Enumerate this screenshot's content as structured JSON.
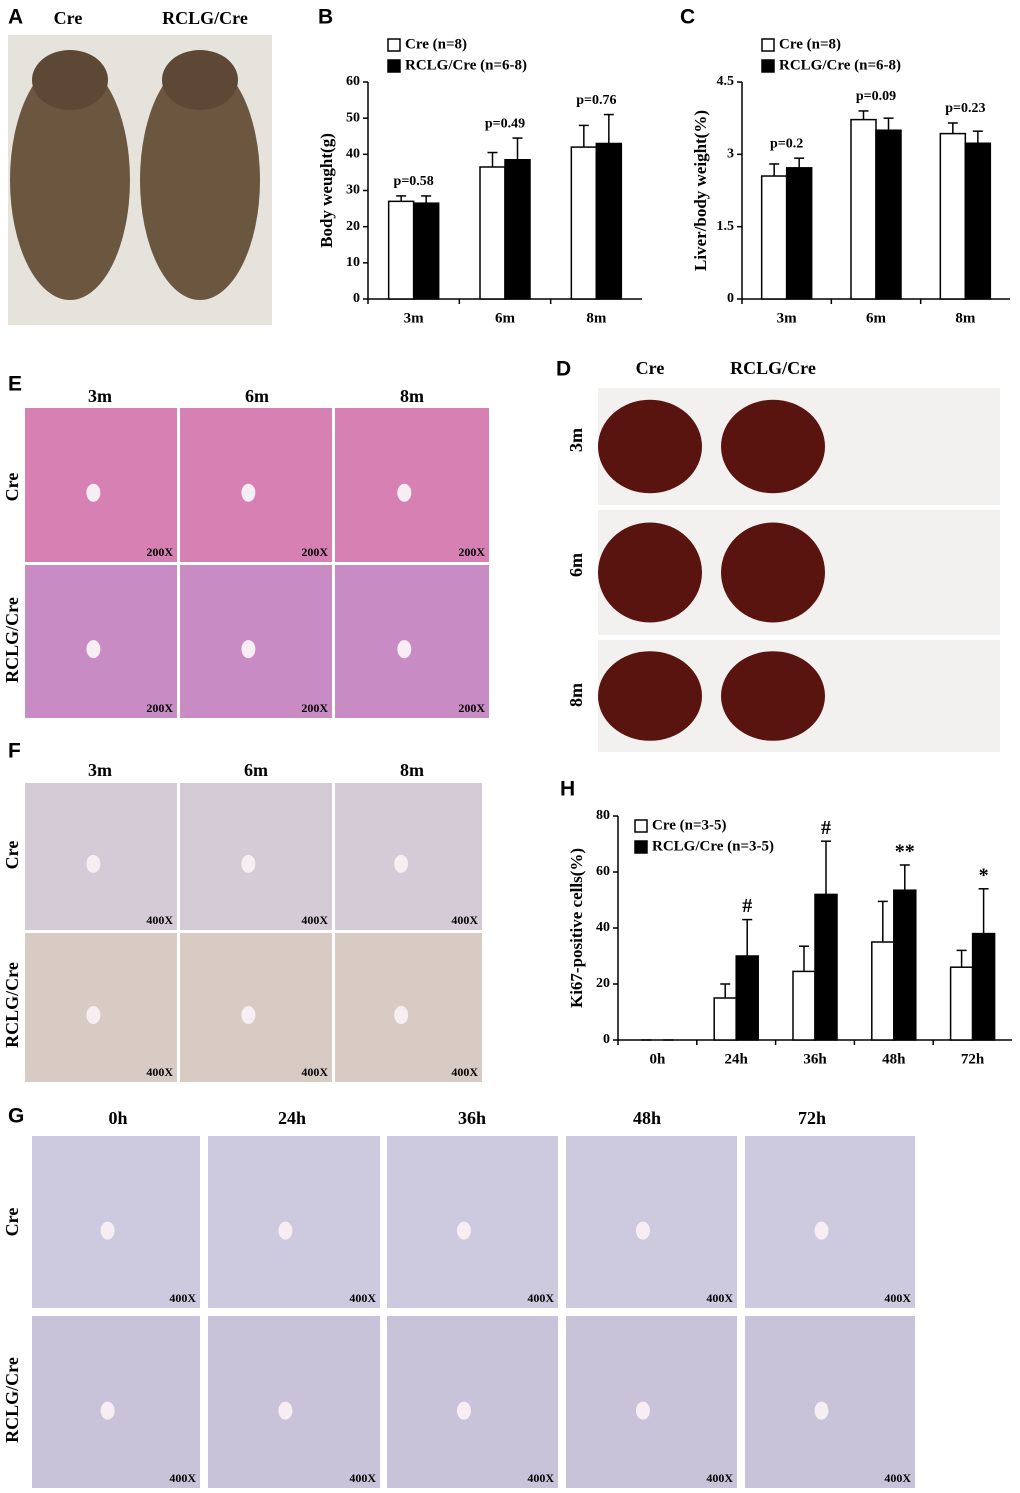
{
  "chart_data": [
    {
      "type": "bar",
      "panel_label": "B",
      "ylabel": "Body weught(g)",
      "categories": [
        "3m",
        "6m",
        "8m"
      ],
      "series": [
        {
          "name": "Cre (n=8)",
          "color": "#ffffff",
          "values": [
            27,
            36.5,
            42
          ],
          "errors": [
            1.5,
            4,
            6
          ]
        },
        {
          "name": "RCLG/Cre (n=6-8)",
          "color": "#000000",
          "values": [
            26.5,
            38.5,
            43
          ],
          "errors": [
            2,
            6,
            8
          ]
        }
      ],
      "annotations": [
        "p=0.58",
        "p=0.49",
        "p=0.76"
      ],
      "ylim": [
        0,
        60
      ],
      "yticks": [
        0,
        10,
        20,
        30,
        40,
        50,
        60
      ]
    },
    {
      "type": "bar",
      "panel_label": "C",
      "ylabel": "Liver/body weight(%)",
      "categories": [
        "3m",
        "6m",
        "8m"
      ],
      "series": [
        {
          "name": "Cre (n=8)",
          "color": "#ffffff",
          "values": [
            2.55,
            3.72,
            3.43
          ],
          "errors": [
            0.25,
            0.18,
            0.22
          ]
        },
        {
          "name": "RCLG/Cre (n=6-8)",
          "color": "#000000",
          "values": [
            2.72,
            3.5,
            3.23
          ],
          "errors": [
            0.2,
            0.25,
            0.25
          ]
        }
      ],
      "annotations": [
        "p=0.2",
        "p=0.09",
        "p=0.23"
      ],
      "ylim": [
        0,
        4.5
      ],
      "yticks": [
        0,
        1.5,
        3,
        4.5
      ]
    },
    {
      "type": "bar",
      "panel_label": "H",
      "ylabel": "Ki67-positive cells(%)",
      "categories": [
        "0h",
        "24h",
        "36h",
        "48h",
        "72h"
      ],
      "series": [
        {
          "name": "Cre (n=3-5)",
          "color": "#ffffff",
          "values": [
            0,
            15,
            24.5,
            35,
            26
          ],
          "errors": [
            0,
            5,
            9,
            14.5,
            6
          ]
        },
        {
          "name": "RCLG/Cre (n=3-5)",
          "color": "#000000",
          "values": [
            0,
            30,
            52,
            53.5,
            38
          ],
          "errors": [
            0,
            13,
            19,
            9,
            16
          ]
        }
      ],
      "annotations": [
        null,
        "#",
        "#",
        "**",
        "*"
      ],
      "ylim": [
        0,
        80
      ],
      "yticks": [
        0,
        20,
        40,
        60,
        80
      ]
    }
  ],
  "panels": [
    {
      "label": "A",
      "columns": [
        "Cre",
        "RCLG/Cre"
      ]
    },
    {
      "label": "D",
      "columns": [
        "Cre",
        "RCLG/Cre"
      ],
      "rows": [
        "3m",
        "6m",
        "8m"
      ]
    },
    {
      "label": "E",
      "columns": [
        "3m",
        "6m",
        "8m"
      ],
      "rows": [
        "Cre",
        "RCLG/Cre"
      ],
      "magnification": "200X"
    },
    {
      "label": "F",
      "columns": [
        "3m",
        "6m",
        "8m"
      ],
      "rows": [
        "Cre",
        "RCLG/Cre"
      ],
      "magnification": "400X"
    },
    {
      "label": "G",
      "columns": [
        "0h",
        "24h",
        "36h",
        "48h",
        "72h"
      ],
      "rows": [
        "Cre",
        "RCLG/Cre"
      ],
      "magnification": "400X"
    }
  ]
}
